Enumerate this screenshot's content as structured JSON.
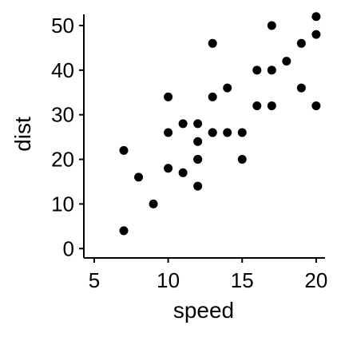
{
  "chart_data": {
    "type": "scatter",
    "title": "",
    "xlabel": "speed",
    "ylabel": "dist",
    "xlim": [
      4.3,
      20.6
    ],
    "ylim": [
      -2.1,
      52.5
    ],
    "xticks": [
      5,
      10,
      15,
      20
    ],
    "yticks": [
      0,
      10,
      20,
      30,
      40,
      50
    ],
    "grid": false,
    "legend": "none",
    "point_color": "#000000",
    "series": [
      {
        "x": [
          7,
          7,
          8,
          9,
          10,
          10,
          10,
          11,
          11,
          12,
          12,
          12,
          12,
          12,
          13,
          13,
          13,
          13,
          14,
          14,
          15,
          15,
          16,
          16,
          17,
          17,
          17,
          18,
          19,
          19,
          20,
          20,
          20
        ],
        "y": [
          4,
          22,
          16,
          10,
          18,
          26,
          34,
          17,
          28,
          14,
          20,
          24,
          28,
          20,
          26,
          34,
          46,
          26,
          26,
          36,
          26,
          20,
          32,
          40,
          32,
          40,
          50,
          42,
          36,
          46,
          32,
          48,
          52
        ]
      }
    ]
  }
}
